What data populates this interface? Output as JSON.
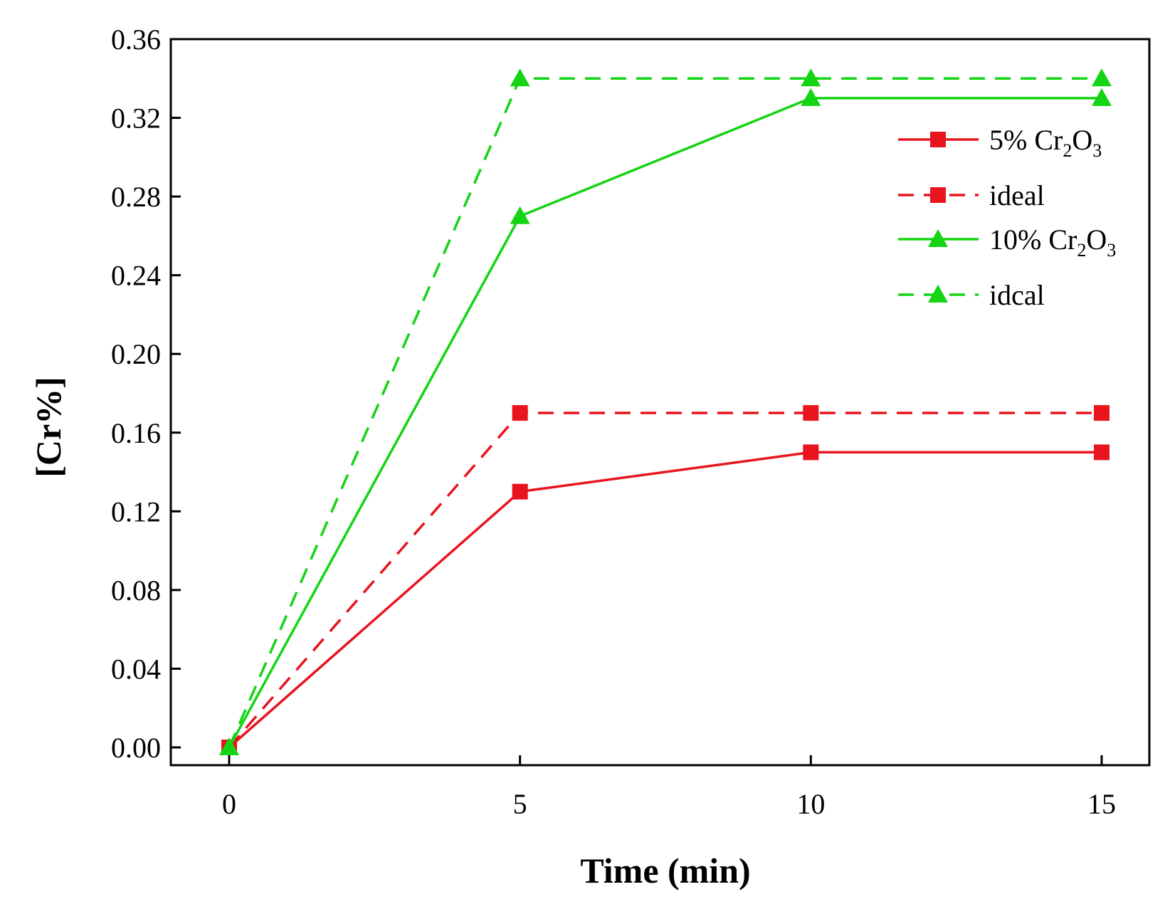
{
  "chart_data": {
    "type": "line",
    "title": "",
    "xlabel": "Time (min)",
    "ylabel": "[Cr%]",
    "xlim": [
      -1,
      16
    ],
    "ylim": [
      0,
      0.36
    ],
    "xticks": [
      0,
      5,
      10,
      15
    ],
    "yticks": [
      0,
      0.04,
      0.08,
      0.12,
      0.16,
      0.2,
      0.24,
      0.28,
      0.32,
      0.36
    ],
    "ytick_labels": [
      "0.00",
      "0.04",
      "0.08",
      "0.12",
      "0.16",
      "0.20",
      "0.24",
      "0.28",
      "0.32",
      "0.36"
    ],
    "xtick_labels": [
      "0",
      "5",
      "10",
      "15"
    ],
    "grid": false,
    "legend_position": "top-right",
    "x": [
      0,
      5,
      10,
      15
    ],
    "series": [
      {
        "name": "5% Cr2O3",
        "label_main": "5% Cr",
        "label_sub1": "2",
        "label_mid": "O",
        "label_sub2": "3",
        "values": [
          0,
          0.13,
          0.15,
          0.15
        ],
        "color": "#e8141e",
        "dash": "solid",
        "marker": "square"
      },
      {
        "name": "ideal",
        "label_main": "ideal",
        "values": [
          0,
          0.17,
          0.17,
          0.17
        ],
        "color": "#e8141e",
        "dash": "dashed",
        "marker": "square"
      },
      {
        "name": "10% Cr2O3",
        "label_main": "10% Cr",
        "label_sub1": "2",
        "label_mid": "O",
        "label_sub2": "3",
        "values": [
          0,
          0.27,
          0.33,
          0.33
        ],
        "color": "#14d414",
        "dash": "solid",
        "marker": "triangle"
      },
      {
        "name": "idcal",
        "label_main": "idcal",
        "values": [
          0,
          0.34,
          0.34,
          0.34
        ],
        "color": "#14d414",
        "dash": "dashed",
        "marker": "triangle"
      }
    ]
  }
}
